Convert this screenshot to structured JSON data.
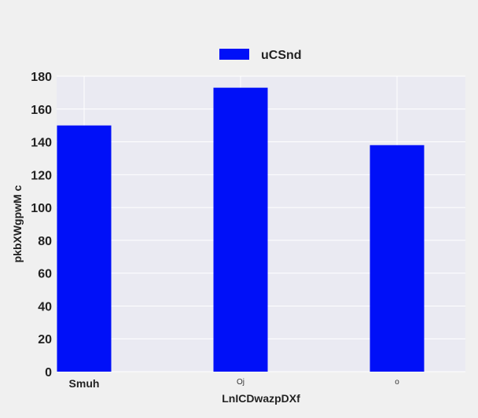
{
  "chart_data": {
    "type": "bar",
    "categories": [
      "Smuh",
      "Oj",
      "o"
    ],
    "series": [
      {
        "name": "uCSnd",
        "values": [
          150,
          173,
          138
        ]
      }
    ],
    "xlabel": "LnICDwazpDXf",
    "ylabel": "pkbXWgpwM c",
    "ylim": [
      0,
      180
    ],
    "yticks": [
      0,
      20,
      40,
      60,
      80,
      100,
      120,
      140,
      160,
      180
    ],
    "grid": true,
    "legend_position": "top-center",
    "colors": {
      "bar": "#0010f8",
      "plot_bg": "#eaeaf2",
      "grid": "#ffffff"
    }
  }
}
